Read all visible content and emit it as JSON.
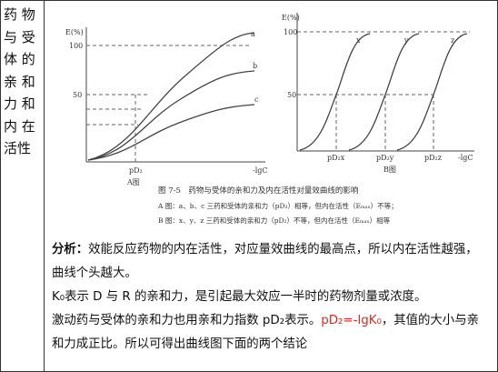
{
  "left_cell": {
    "lines": [
      "药 物",
      "与 受",
      "体 的",
      "亲 和",
      "力 和",
      "内 在",
      "活性"
    ]
  },
  "figure": {
    "panel_a": {
      "y_axis_label": "E(%)",
      "tick_top": "100",
      "tick_mid": "50",
      "curve_labels": [
        "a",
        "b",
        "c"
      ],
      "x_tick": "pD₂",
      "x_axis_label": "-lgC",
      "panel_label": "A图"
    },
    "panel_b": {
      "y_axis_label": "E(%)",
      "tick_top": "100",
      "tick_mid": "50",
      "curve_labels": [
        "x",
        "y",
        "z"
      ],
      "x_ticks": [
        "pD₂x",
        "pD₂y",
        "pD₂z"
      ],
      "x_axis_label": "-lgC",
      "panel_label": "B图"
    },
    "caption": "图 7-5　药物与受体的亲和力及内在活性对量效曲线的影响",
    "notes": [
      "A 图：a、b、c 三药和受体的亲和力（pD₂）相等，但内在活性（Eₘₐₓ）不等；",
      "B 图：x、y、z 三药和受体的亲和力（pD₂）不等，但内在活性（Eₘₐₓ）相等"
    ]
  },
  "analysis": {
    "p1": {
      "label": "分析：",
      "text": "效能反应药物的内在活性，对应量效曲线的最高点，所以内在活性越强，曲线个头越大。"
    },
    "p2": "K₀表示 D 与 R 的亲和力，是引起最大效应一半时的药物剂量或浓度。",
    "p3": {
      "before": "激动药与受体的亲和力也用亲和力指数 pD₂表示。",
      "highlight": "pD₂=-lgK₀",
      "after": "，其值的大小与亲和力成正比。所以可得出曲线图下面的两个结论"
    }
  }
}
